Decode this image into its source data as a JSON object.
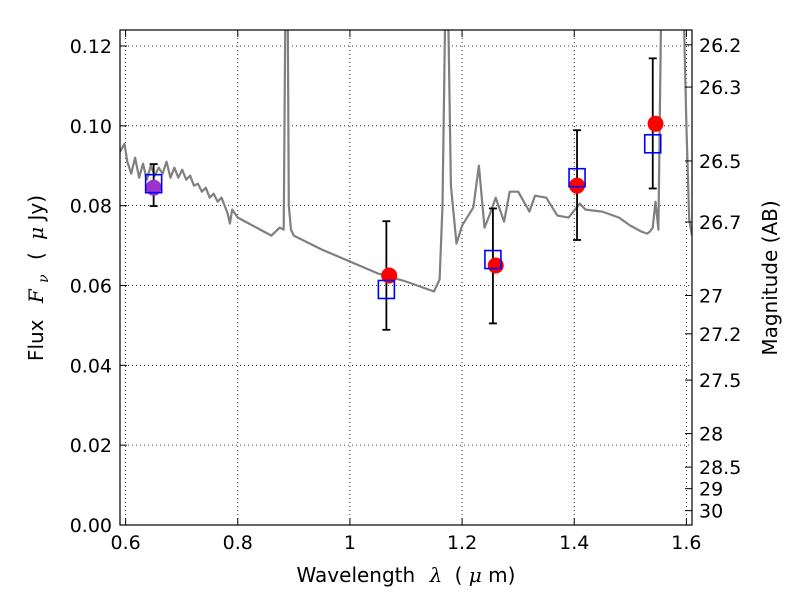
{
  "chart_data": {
    "type": "scatter",
    "xlabel": {
      "text": "Wavelength",
      "symbol": "λ",
      "unit_open": "(",
      "unit_mu": "μ",
      "unit_rest": "m)"
    },
    "ylabel": {
      "text": "Flux",
      "symbol": "F",
      "sub": "ν",
      "unit_open": "(",
      "unit_mu": "μ",
      "unit_rest": "Jy)"
    },
    "y2label": "Magnitude (AB)",
    "xlim": [
      0.59,
      1.61
    ],
    "ylim": [
      0.0,
      0.124
    ],
    "grid": true,
    "x_ticks": [
      {
        "value": 0.6,
        "label": "0.6"
      },
      {
        "value": 0.8,
        "label": "0.8"
      },
      {
        "value": 1.0,
        "label": "1"
      },
      {
        "value": 1.2,
        "label": "1.2"
      },
      {
        "value": 1.4,
        "label": "1.4"
      },
      {
        "value": 1.6,
        "label": "1.6"
      }
    ],
    "y_ticks": [
      {
        "value": 0.0,
        "label": "0.00"
      },
      {
        "value": 0.02,
        "label": "0.02"
      },
      {
        "value": 0.04,
        "label": "0.04"
      },
      {
        "value": 0.06,
        "label": "0.06"
      },
      {
        "value": 0.08,
        "label": "0.08"
      },
      {
        "value": 0.1,
        "label": "0.10"
      },
      {
        "value": 0.12,
        "label": "0.12"
      }
    ],
    "y2_ticks": [
      {
        "label": "26.2",
        "flux": 0.1203
      },
      {
        "label": "26.3",
        "flux": 0.1097
      },
      {
        "label": "26.5",
        "flux": 0.0912
      },
      {
        "label": "26.7",
        "flux": 0.0759
      },
      {
        "label": "27",
        "flux": 0.0575
      },
      {
        "label": "27.2",
        "flux": 0.0479
      },
      {
        "label": "27.5",
        "flux": 0.0363
      },
      {
        "label": "28",
        "flux": 0.0229
      },
      {
        "label": "28.5",
        "flux": 0.0145
      },
      {
        "label": "29",
        "flux": 0.0091
      },
      {
        "label": "30",
        "flux": 0.0036
      }
    ],
    "series": [
      {
        "kind": "line",
        "color": "#808080",
        "x": [
          0.59,
          0.598,
          0.603,
          0.61,
          0.617,
          0.624,
          0.631,
          0.638,
          0.645,
          0.652,
          0.659,
          0.666,
          0.673,
          0.68,
          0.687,
          0.694,
          0.701,
          0.708,
          0.715,
          0.722,
          0.729,
          0.736,
          0.743,
          0.75,
          0.757,
          0.764,
          0.771,
          0.778,
          0.782,
          0.786,
          0.79,
          0.8,
          0.82,
          0.84,
          0.86,
          0.875,
          0.882,
          0.885,
          0.889,
          0.891,
          0.895,
          0.9,
          0.95,
          1.0,
          1.05,
          1.1,
          1.13,
          1.15,
          1.16,
          1.165,
          1.17,
          1.175,
          1.18,
          1.19,
          1.2,
          1.22,
          1.23,
          1.24,
          1.25,
          1.26,
          1.275,
          1.285,
          1.3,
          1.32,
          1.33,
          1.35,
          1.37,
          1.39,
          1.41,
          1.42,
          1.45,
          1.48,
          1.5,
          1.52,
          1.53,
          1.535,
          1.54,
          1.545,
          1.55,
          1.555,
          1.56,
          1.57,
          1.58,
          1.59,
          1.595,
          1.6,
          1.605,
          1.61
        ],
        "y": [
          0.0935,
          0.0955,
          0.091,
          0.088,
          0.092,
          0.087,
          0.0905,
          0.0865,
          0.09,
          0.0875,
          0.0895,
          0.088,
          0.091,
          0.087,
          0.0895,
          0.087,
          0.089,
          0.0865,
          0.0875,
          0.085,
          0.0855,
          0.0835,
          0.0845,
          0.082,
          0.083,
          0.081,
          0.082,
          0.0795,
          0.078,
          0.0755,
          0.079,
          0.077,
          0.0755,
          0.074,
          0.0725,
          0.0745,
          0.074,
          0.13,
          0.13,
          0.08,
          0.074,
          0.0725,
          0.069,
          0.066,
          0.063,
          0.061,
          0.0595,
          0.0585,
          0.0615,
          0.08,
          0.13,
          0.13,
          0.085,
          0.0705,
          0.075,
          0.0795,
          0.09,
          0.0745,
          0.078,
          0.082,
          0.076,
          0.0835,
          0.0835,
          0.0785,
          0.0825,
          0.082,
          0.0775,
          0.077,
          0.0805,
          0.079,
          0.0785,
          0.077,
          0.075,
          0.0735,
          0.073,
          0.0735,
          0.0745,
          0.081,
          0.074,
          0.13,
          0.13,
          0.13,
          0.13,
          0.13,
          0.13,
          0.1,
          0.0765,
          0.0725
        ]
      },
      {
        "kind": "markers",
        "name": "red-points",
        "color": "#ff0000",
        "marker": "circle",
        "x": [
          0.65,
          1.07,
          1.26,
          1.405,
          1.545
        ],
        "y": [
          0.0845,
          0.0625,
          0.065,
          0.085,
          0.1005
        ]
      },
      {
        "kind": "markers",
        "name": "blue-squares",
        "color": "#0000ff",
        "marker": "square-open",
        "x": [
          0.65,
          1.065,
          1.255,
          1.405,
          1.54
        ],
        "y": [
          0.0855,
          0.059,
          0.0665,
          0.087,
          0.0955
        ],
        "yerr_low": [
          0.0799,
          0.0489,
          0.0505,
          0.0714,
          0.0843
        ],
        "yerr_high": [
          0.0904,
          0.0761,
          0.0793,
          0.0989,
          0.1169
        ]
      }
    ],
    "errorbar_color": "#000000",
    "overlap_color": "#9933cc"
  }
}
